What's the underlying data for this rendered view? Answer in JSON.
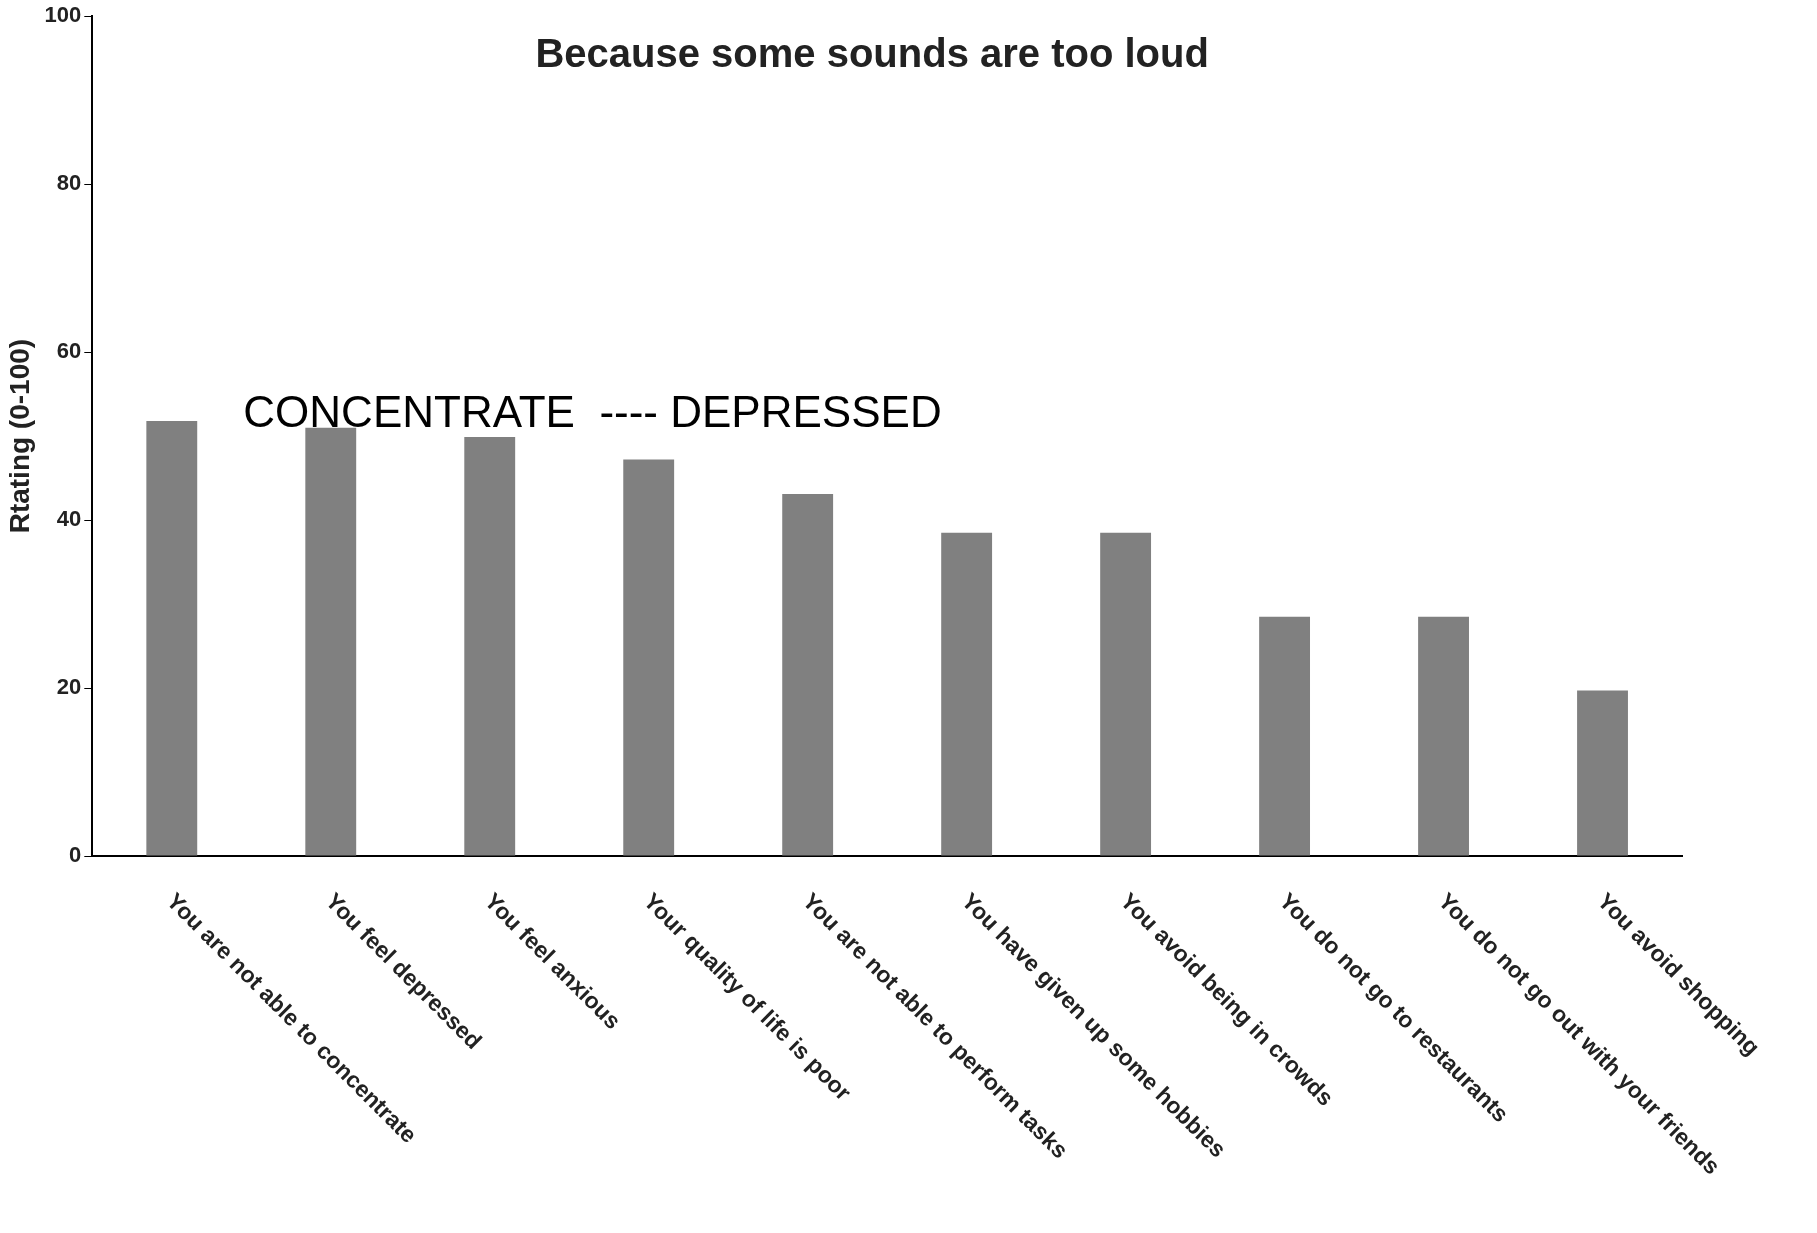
{
  "chart_data": {
    "type": "bar",
    "title": "Because some sounds are too loud",
    "ylabel": "Rtating (0-100)",
    "categories": [
      "You are not able to concentrate",
      "You feel depressed",
      "You feel anxious",
      "Your quality of life is poor",
      "You are not able to perform tasks",
      "You have given up some hobbies",
      "You avoid being in crowds",
      "You do not go to restaurants",
      "You do not go out with your friends",
      "You avoid shopping"
    ],
    "values": [
      51.8,
      51,
      49.9,
      47.2,
      43.1,
      38.5,
      38.5,
      28.5,
      28.5,
      19.7
    ],
    "color": "#808080",
    "ylim": [
      0,
      100
    ],
    "yticks": [
      0,
      20,
      40,
      60,
      80,
      100
    ],
    "grid": false,
    "legend": false,
    "annotations": [
      "CONCENTRATE  ---- DEPRESSED"
    ]
  }
}
